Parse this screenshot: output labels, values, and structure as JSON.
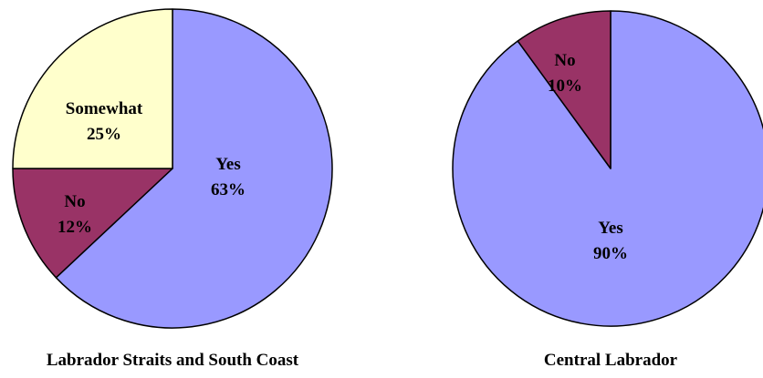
{
  "chart_data": [
    {
      "type": "pie",
      "title": "Labrador Straits and South Coast",
      "slices": [
        {
          "label": "Yes",
          "value": 63,
          "display": "63%",
          "color": "#9999FF"
        },
        {
          "label": "No",
          "value": 12,
          "display": "12%",
          "color": "#993366"
        },
        {
          "label": "Somewhat",
          "value": 25,
          "display": "25%",
          "color": "#FFFFCC"
        }
      ]
    },
    {
      "type": "pie",
      "title": "Central Labrador",
      "slices": [
        {
          "label": "Yes",
          "value": 90,
          "display": "90%",
          "color": "#9999FF"
        },
        {
          "label": "No",
          "value": 10,
          "display": "10%",
          "color": "#993366"
        }
      ]
    }
  ]
}
